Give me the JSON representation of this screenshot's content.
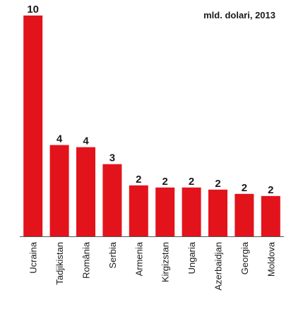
{
  "chart_data": {
    "type": "bar",
    "title": "mld. dolari, 2013",
    "categories": [
      "Ucraina",
      "Tadjikistan",
      "România",
      "Serbia",
      "Armenia",
      "Kirgizstan",
      "Ungaria",
      "Azerbaidjan",
      "Georgia",
      "Moldova"
    ],
    "values": [
      10.4,
      4.3,
      4.2,
      3.4,
      2.4,
      2.3,
      2.3,
      2.2,
      2.0,
      1.9
    ],
    "value_labels": [
      "10",
      "4",
      "4",
      "3",
      "2",
      "2",
      "2",
      "2",
      "2",
      "2"
    ],
    "color": "#e3131b",
    "ylim": [
      0,
      10.4
    ]
  }
}
